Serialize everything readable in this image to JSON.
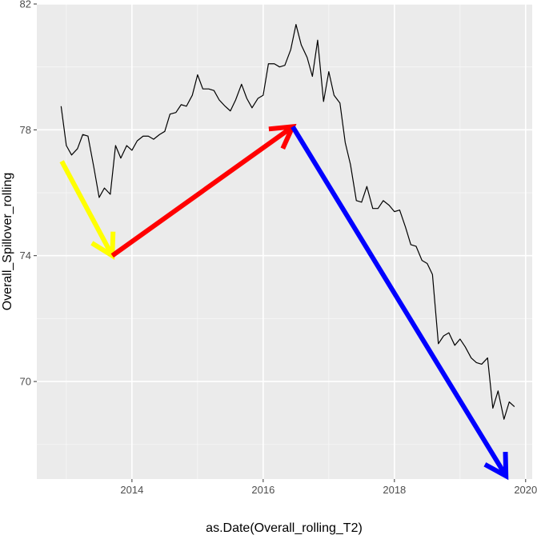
{
  "chart_data": {
    "type": "line",
    "title": "",
    "xlabel": "as.Date(Overall_rolling_T2)",
    "ylabel": "Overall_Spillover_rolling",
    "xlim": [
      2012.55,
      2020.1
    ],
    "ylim": [
      66.9,
      82.0
    ],
    "x_ticks": [
      2014,
      2016,
      2018,
      2020
    ],
    "x_tick_labels": [
      "2014",
      "2016",
      "2018",
      "2020"
    ],
    "y_ticks": [
      70,
      74,
      78,
      82
    ],
    "y_tick_labels": [
      "70",
      "74",
      "78",
      "82"
    ],
    "grid": true,
    "background": "#ebebeb",
    "grid_major_color": "#ffffff",
    "line_color": "#000000",
    "series": [
      {
        "x": [
          2012.92,
          2013.0,
          2013.08,
          2013.17,
          2013.25,
          2013.33,
          2013.42,
          2013.5,
          2013.58,
          2013.67,
          2013.75,
          2013.83,
          2013.92,
          2014.0,
          2014.08,
          2014.17,
          2014.25,
          2014.33,
          2014.42,
          2014.5,
          2014.58,
          2014.67,
          2014.75,
          2014.83,
          2014.92,
          2015.0,
          2015.08,
          2015.17,
          2015.25,
          2015.33,
          2015.42,
          2015.5,
          2015.58,
          2015.67,
          2015.75,
          2015.83,
          2015.92,
          2016.0,
          2016.08,
          2016.17,
          2016.25,
          2016.33,
          2016.42,
          2016.5,
          2016.58,
          2016.67,
          2016.75,
          2016.83,
          2016.92,
          2017.0,
          2017.08,
          2017.17,
          2017.25,
          2017.33,
          2017.42,
          2017.5,
          2017.58,
          2017.67,
          2017.75,
          2017.83,
          2017.92,
          2018.0,
          2018.08,
          2018.17,
          2018.25,
          2018.33,
          2018.42,
          2018.5,
          2018.58,
          2018.67,
          2018.75,
          2018.83,
          2018.92,
          2019.0,
          2019.08,
          2019.17,
          2019.25,
          2019.33,
          2019.42,
          2019.5,
          2019.58,
          2019.67,
          2019.75,
          2019.83
        ],
        "y": [
          78.75,
          77.5,
          77.2,
          77.4,
          77.85,
          77.8,
          76.8,
          75.85,
          76.15,
          75.95,
          77.5,
          77.1,
          77.5,
          77.35,
          77.65,
          77.8,
          77.8,
          77.7,
          77.85,
          77.95,
          78.5,
          78.55,
          78.8,
          78.75,
          79.1,
          79.75,
          79.3,
          79.3,
          79.25,
          78.95,
          78.75,
          78.6,
          78.95,
          79.45,
          79.0,
          78.7,
          79.0,
          79.1,
          80.1,
          80.1,
          80.0,
          80.05,
          80.55,
          81.35,
          80.7,
          80.3,
          79.7,
          80.85,
          78.9,
          79.85,
          79.1,
          78.85,
          77.6,
          76.9,
          75.75,
          75.7,
          76.2,
          75.5,
          75.5,
          75.75,
          75.6,
          75.4,
          75.45,
          74.9,
          74.35,
          74.3,
          73.85,
          73.75,
          73.4,
          71.2,
          71.45,
          71.55,
          71.15,
          71.35,
          71.1,
          70.75,
          70.6,
          70.55,
          70.75,
          69.15,
          69.7,
          68.8,
          69.35,
          69.2
        ]
      }
    ],
    "annotations": [
      {
        "type": "arrow",
        "color": "#ffff00",
        "from": [
          2012.93,
          77.0
        ],
        "to": [
          2013.7,
          74.0
        ]
      },
      {
        "type": "arrow",
        "color": "#ff0000",
        "from": [
          2013.7,
          74.0
        ],
        "to": [
          2016.45,
          78.1
        ]
      },
      {
        "type": "arrow",
        "color": "#0000ff",
        "from": [
          2016.45,
          78.1
        ],
        "to": [
          2019.7,
          67.0
        ]
      }
    ]
  }
}
